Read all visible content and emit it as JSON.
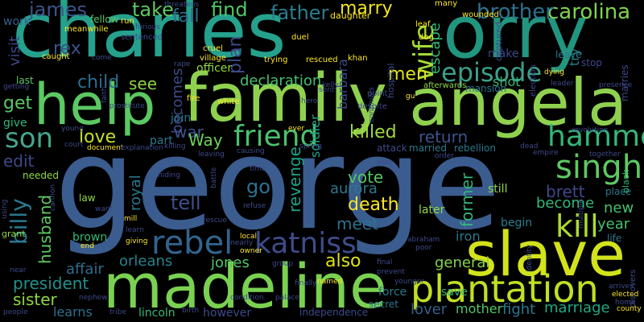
{
  "words": [
    {
      "text": "george",
      "color": "#3b5c8f"
    },
    {
      "text": "charles",
      "color": "#25a18e"
    },
    {
      "text": "orry",
      "color": "#22957f"
    },
    {
      "text": "family",
      "color": "#8fd14f"
    },
    {
      "text": "angela",
      "color": "#8fd14f"
    },
    {
      "text": "help",
      "color": "#5cc863"
    },
    {
      "text": "slave",
      "color": "#d2e21b"
    },
    {
      "text": "madeline",
      "color": "#7ad151"
    },
    {
      "text": "plantation",
      "color": "#c2df23"
    },
    {
      "text": "katniss",
      "color": "#3e4c8a"
    },
    {
      "text": "rebel",
      "color": "#32648e"
    },
    {
      "text": "kill",
      "color": "#addc30"
    },
    {
      "text": "singh",
      "color": "#5ec962"
    },
    {
      "text": "hammer",
      "color": "#35b779"
    },
    {
      "text": "episode",
      "color": "#3d9f8a"
    },
    {
      "text": "friend",
      "color": "#4ac16d"
    },
    {
      "text": "son",
      "color": "#46a58b"
    },
    {
      "text": "wife",
      "color": "#a2da37"
    },
    {
      "text": "carolina",
      "color": "#7fd34e"
    },
    {
      "text": "brother",
      "color": "#2c728e"
    },
    {
      "text": "marry",
      "color": "#f0e51d"
    },
    {
      "text": "father",
      "color": "#2b7c8e"
    },
    {
      "text": "find",
      "color": "#52c569"
    },
    {
      "text": "take",
      "color": "#5ec962"
    },
    {
      "text": "james",
      "color": "#3a548c"
    },
    {
      "text": "fall",
      "color": "#2f6c8e"
    },
    {
      "text": "plan",
      "color": "#3e4989"
    },
    {
      "text": "escape",
      "color": "#35b779"
    },
    {
      "text": "men",
      "color": "#dde318"
    },
    {
      "text": "rex",
      "color": "#3b528b"
    },
    {
      "text": "child",
      "color": "#2e6e8e"
    },
    {
      "text": "get",
      "color": "#5cc863"
    },
    {
      "text": "love",
      "color": "#c8e020"
    },
    {
      "text": "see",
      "color": "#8ed645"
    },
    {
      "text": "becomes",
      "color": "#3e4989"
    },
    {
      "text": "declaration",
      "color": "#46c06f"
    },
    {
      "text": "war",
      "color": "#3b528b"
    },
    {
      "text": "killed",
      "color": "#a0da39"
    },
    {
      "text": "return",
      "color": "#3b528b"
    },
    {
      "text": "Way",
      "color": "#70cf57"
    },
    {
      "text": "edit",
      "color": "#3e4989"
    },
    {
      "text": "go",
      "color": "#2d718e"
    },
    {
      "text": "tell",
      "color": "#3b528b"
    },
    {
      "text": "royal",
      "color": "#2a768e"
    },
    {
      "text": "revenge",
      "color": "#1fa187"
    },
    {
      "text": "vote",
      "color": "#56c667"
    },
    {
      "text": "aurora",
      "color": "#2a788e"
    },
    {
      "text": "death",
      "color": "#fde725"
    },
    {
      "text": "meet",
      "color": "#2c728e"
    },
    {
      "text": "former",
      "color": "#31b57b"
    },
    {
      "text": "become",
      "color": "#35b779"
    },
    {
      "text": "brett",
      "color": "#3e4989"
    },
    {
      "text": "new",
      "color": "#46c06f"
    },
    {
      "text": "year",
      "color": "#4ac16d"
    },
    {
      "text": "billy",
      "color": "#2a788e"
    },
    {
      "text": "husband",
      "color": "#5ec962"
    },
    {
      "text": "orleans",
      "color": "#26828e"
    },
    {
      "text": "jones",
      "color": "#52c569"
    },
    {
      "text": "also",
      "color": "#dde318"
    },
    {
      "text": "president",
      "color": "#21918c"
    },
    {
      "text": "sister",
      "color": "#90d743"
    },
    {
      "text": "general",
      "color": "#84d44b"
    },
    {
      "text": "lover",
      "color": "#355f8d"
    },
    {
      "text": "mother",
      "color": "#52c569"
    },
    {
      "text": "fight",
      "color": "#2a788e"
    },
    {
      "text": "marriage",
      "color": "#22a884"
    },
    {
      "text": "iron",
      "color": "#2a788e"
    },
    {
      "text": "affair",
      "color": "#2e6e8e"
    },
    {
      "text": "learns",
      "color": "#2c728e"
    },
    {
      "text": "visit",
      "color": "#3e4989"
    },
    {
      "text": "soldier",
      "color": "#1fa187"
    },
    {
      "text": "barbara",
      "color": "#3e4989"
    },
    {
      "text": "shot",
      "color": "#35b779"
    },
    {
      "text": "try",
      "color": "#26828e"
    },
    {
      "text": "make",
      "color": "#3e4989"
    },
    {
      "text": "begin",
      "color": "#26828e"
    },
    {
      "text": "force",
      "color": "#2a788e"
    },
    {
      "text": "save",
      "color": "#35b779"
    },
    {
      "text": "join",
      "color": "#2a788e"
    },
    {
      "text": "give",
      "color": "#35b779"
    },
    {
      "text": "work",
      "color": "#355f8d"
    },
    {
      "text": "part",
      "color": "#2a788e"
    },
    {
      "text": "officer",
      "color": "#8fd744"
    },
    {
      "text": "brown",
      "color": "#35b779"
    },
    {
      "text": "leave",
      "color": "#2a788e"
    },
    {
      "text": "lincoln",
      "color": "#35b779"
    },
    {
      "text": "however",
      "color": "#3e4989"
    },
    {
      "text": "marries",
      "color": "#3e4989"
    },
    {
      "text": "attack",
      "color": "#3e4989"
    },
    {
      "text": "married",
      "color": "#2a788e"
    },
    {
      "text": "rebellion",
      "color": "#2a788e"
    },
    {
      "text": "stop",
      "color": "#3e4989"
    },
    {
      "text": "last",
      "color": "#5cc863"
    },
    {
      "text": "fellow",
      "color": "#5cc863"
    },
    {
      "text": "mansion",
      "color": "#2a788e"
    },
    {
      "text": "place",
      "color": "#2a788e"
    },
    {
      "text": "black",
      "color": "#35b779"
    },
    {
      "text": "life",
      "color": "#2a788e"
    },
    {
      "text": "later",
      "color": "#8fd744"
    },
    {
      "text": "still",
      "color": "#8fd744"
    },
    {
      "text": "secret",
      "color": "#2a788e"
    },
    {
      "text": "independence",
      "color": "#3e4989"
    },
    {
      "text": "discovers",
      "color": "#3e4989"
    },
    {
      "text": "law",
      "color": "#8fd744"
    },
    {
      "text": "needed",
      "color": "#8fd744"
    },
    {
      "text": "grant",
      "color": "#8fd744"
    },
    {
      "text": "hospital",
      "color": "#3e4989"
    },
    {
      "text": "captured",
      "color": "#3e4989"
    },
    {
      "text": "many",
      "color": "#fde725"
    },
    {
      "text": "wounded",
      "color": "#fde725"
    },
    {
      "text": "daughter",
      "color": "#fde725"
    },
    {
      "text": "election",
      "color": "#3e4989"
    },
    {
      "text": "run",
      "color": "#fde725"
    },
    {
      "text": "fire",
      "color": "#fde725"
    },
    {
      "text": "white",
      "color": "#fde725"
    },
    {
      "text": "point",
      "color": "#3e4989"
    },
    {
      "text": "despite",
      "color": "#3e4989"
    },
    {
      "text": "afterwards",
      "color": "#8fd744"
    },
    {
      "text": "khan",
      "color": "#fde725"
    },
    {
      "text": "trying",
      "color": "#fde725"
    },
    {
      "text": "rescued",
      "color": "#fde725"
    },
    {
      "text": "cruel",
      "color": "#fde725"
    },
    {
      "text": "village",
      "color": "#fde725"
    },
    {
      "text": "dog",
      "color": "#fde725"
    },
    {
      "text": "duel",
      "color": "#fde725"
    },
    {
      "text": "leaf",
      "color": "#fde725"
    },
    {
      "text": "caught",
      "color": "#fde725"
    },
    {
      "text": "sentenced",
      "color": "#3e4989"
    },
    {
      "text": "meanwhile",
      "color": "#fde725"
    },
    {
      "text": "threatens",
      "color": "#3e4989"
    },
    {
      "text": "come",
      "color": "#3e4989"
    },
    {
      "text": "prostitute",
      "color": "#3e4989"
    },
    {
      "text": "getting",
      "color": "#3e4989"
    },
    {
      "text": "young",
      "color": "#3e4989"
    },
    {
      "text": "court",
      "color": "#3e4989"
    },
    {
      "text": "document",
      "color": "#fde725"
    },
    {
      "text": "explanation",
      "color": "#3e4989"
    },
    {
      "text": "killing",
      "color": "#3e4989"
    },
    {
      "text": "leaving",
      "color": "#3e4989"
    },
    {
      "text": "causing",
      "color": "#3e4989"
    },
    {
      "text": "spring",
      "color": "#3e4989"
    },
    {
      "text": "asks",
      "color": "#3e4989"
    },
    {
      "text": "order",
      "color": "#3e4989"
    },
    {
      "text": "dead",
      "color": "#3e4989"
    },
    {
      "text": "empire",
      "color": "#3e4989"
    },
    {
      "text": "together",
      "color": "#3e4989"
    },
    {
      "text": "revolution",
      "color": "#3e4989"
    },
    {
      "text": "presence",
      "color": "#3e4989"
    },
    {
      "text": "dying",
      "color": "#fde725"
    },
    {
      "text": "leader",
      "color": "#3e4989"
    },
    {
      "text": "gu",
      "color": "#fde725"
    },
    {
      "text": "continues",
      "color": "#3e4989"
    },
    {
      "text": "ever",
      "color": "#fde725"
    },
    {
      "text": "hiding",
      "color": "#3e4989"
    },
    {
      "text": "battle",
      "color": "#3e4989"
    },
    {
      "text": "time",
      "color": "#3e4989"
    },
    {
      "text": "refuse",
      "color": "#3e4989"
    },
    {
      "text": "want",
      "color": "#3e4989"
    },
    {
      "text": "mill",
      "color": "#fde725"
    },
    {
      "text": "learn",
      "color": "#3e4989"
    },
    {
      "text": "giving",
      "color": "#fde725"
    },
    {
      "text": "rescue",
      "color": "#3e4989"
    },
    {
      "text": "nearly",
      "color": "#3e4989"
    },
    {
      "text": "local",
      "color": "#fde725"
    },
    {
      "text": "owner",
      "color": "#fde725"
    },
    {
      "text": "group",
      "color": "#3e4989"
    },
    {
      "text": "finally",
      "color": "#3e4989"
    },
    {
      "text": "palace",
      "color": "#3e4989"
    },
    {
      "text": "named",
      "color": "#fde725"
    },
    {
      "text": "condition",
      "color": "#3e4989"
    },
    {
      "text": "birth",
      "color": "#3e4989"
    },
    {
      "text": "tribe",
      "color": "#3e4989"
    },
    {
      "text": "nephew",
      "color": "#3e4989"
    },
    {
      "text": "people",
      "color": "#3e4989"
    },
    {
      "text": "near",
      "color": "#3e4989"
    },
    {
      "text": "end",
      "color": "#fde725"
    },
    {
      "text": "abraham",
      "color": "#3e4989"
    },
    {
      "text": "poor",
      "color": "#3e4989"
    },
    {
      "text": "final",
      "color": "#3e4989"
    },
    {
      "text": "prevent",
      "color": "#3e4989"
    },
    {
      "text": "younger",
      "color": "#3e4989"
    },
    {
      "text": "identity",
      "color": "#3e4989"
    },
    {
      "text": "arrives",
      "color": "#3e4989"
    },
    {
      "text": "elected",
      "color": "#fde725"
    },
    {
      "text": "county",
      "color": "#fde725"
    },
    {
      "text": "home",
      "color": "#3e4989"
    },
    {
      "text": "using",
      "color": "#3e4989"
    },
    {
      "text": "cannon",
      "color": "#3e4989"
    },
    {
      "text": "multiple",
      "color": "#3e4989"
    },
    {
      "text": "faith",
      "color": "#3e4989"
    },
    {
      "text": "rape",
      "color": "#3e4989"
    },
    {
      "text": "furious",
      "color": "#3e4989"
    },
    {
      "text": "sent",
      "color": "#3e4989"
    },
    {
      "text": "kelly",
      "color": "#3e4989"
    },
    {
      "text": "hero",
      "color": "#3e4989"
    }
  ]
}
